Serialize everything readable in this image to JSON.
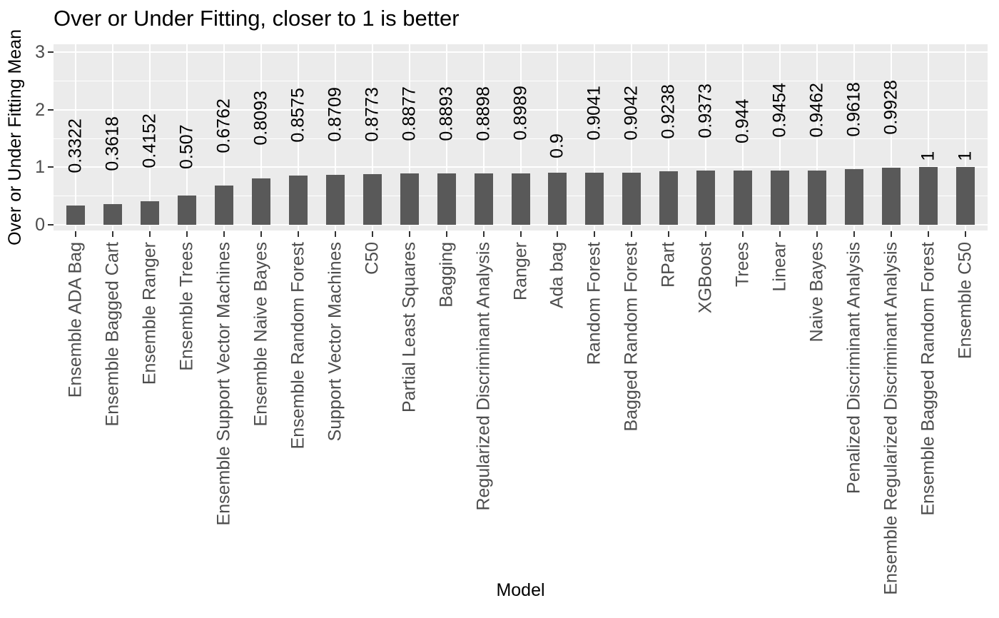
{
  "chart_data": {
    "type": "bar",
    "title": "Over or Under Fitting, closer to 1 is better",
    "xlabel": "Model",
    "ylabel": "Over or Under Fitting Mean",
    "categories": [
      "Ensemble ADA Bag",
      "Ensemble Bagged Cart",
      "Ensemble Ranger",
      "Ensemble Trees",
      "Ensemble Support Vector Machines",
      "Ensemble Naive Bayes",
      "Ensemble Random Forest",
      "Support Vector Machines",
      "C50",
      "Partial Least Squares",
      "Bagging",
      "Regularized Discriminant Analysis",
      "Ranger",
      "Ada bag",
      "Random Forest",
      "Bagged Random Forest",
      "RPart",
      "XGBoost",
      "Trees",
      "Linear",
      "Naive Bayes",
      "Penalized Discriminant Analysis",
      "Ensemble Regularized Discriminant Analysis",
      "Ensemble Bagged Random Forest",
      "Ensemble C50"
    ],
    "values": [
      0.3322,
      0.3618,
      0.4152,
      0.507,
      0.6762,
      0.8093,
      0.8575,
      0.8709,
      0.8773,
      0.8877,
      0.8893,
      0.8898,
      0.8989,
      0.9,
      0.9041,
      0.9042,
      0.9238,
      0.9373,
      0.944,
      0.9454,
      0.9462,
      0.9618,
      0.9928,
      1,
      1
    ],
    "value_labels": [
      "0.3322",
      "0.3618",
      "0.4152",
      "0.507",
      "0.6762",
      "0.8093",
      "0.8575",
      "0.8709",
      "0.8773",
      "0.8877",
      "0.8893",
      "0.8898",
      "0.8989",
      "0.9",
      "0.9041",
      "0.9042",
      "0.9238",
      "0.9373",
      "0.944",
      "0.9454",
      "0.9462",
      "0.9618",
      "0.9928",
      "1",
      "1"
    ],
    "yticks": [
      0,
      1,
      2,
      3
    ],
    "yticks_minor": [
      0.5,
      1.5,
      2.5
    ],
    "ylim": [
      0,
      3.14
    ],
    "grid": true,
    "legend": "none",
    "colors": {
      "bar": "#595959",
      "panel_background": "#EBEBEB",
      "gridline": "#FFFFFF",
      "tick_mark": "#333333",
      "tick_label": "#4D4D4D",
      "text": "#000000",
      "page_background": "#FFFFFF"
    }
  }
}
